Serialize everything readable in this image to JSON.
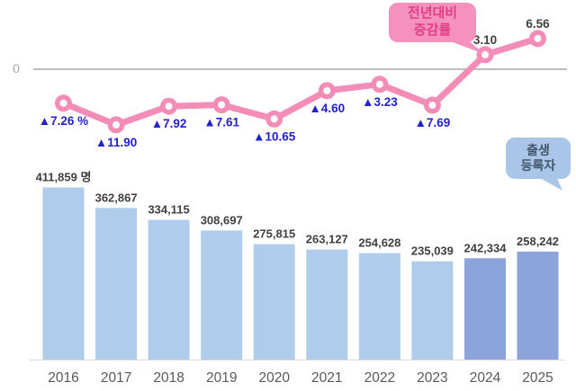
{
  "colors": {
    "bar_light": "#AFCDEA",
    "bar_dark": "#8DA4DA",
    "line_pink": "#F48CB8",
    "marker_hole": "#FFFFFF",
    "value_label_blue": "#2222CC",
    "value_label_dark": "#404040",
    "bar_label": "#404040",
    "year_label": "#595959",
    "zero_line": "#A6A6A6",
    "baseline": "#D9D9D9",
    "bubble_pink_fill": "#F591BD",
    "bubble_pink_text": "#E23D87",
    "bubble_blue_fill": "#A9C6E8",
    "bubble_blue_text": "#44546A"
  },
  "axis": {
    "zero_label": "0"
  },
  "callouts": {
    "line_series": {
      "line1": "전년대비",
      "line2": "증감률"
    },
    "bar_series": {
      "line1": "출생",
      "line2": "등록자"
    }
  },
  "chart_data": [
    {
      "type": "line",
      "name": "전년대비 증감률",
      "unit": "%",
      "categories": [
        "2016",
        "2017",
        "2018",
        "2019",
        "2020",
        "2021",
        "2022",
        "2023",
        "2024",
        "2025"
      ],
      "values": [
        -7.26,
        -11.9,
        -7.92,
        -7.61,
        -10.65,
        -4.6,
        -3.23,
        -7.69,
        3.1,
        6.56
      ],
      "labels": [
        "▲7.26 %",
        "▲11.90",
        "▲7.92",
        "▲7.61",
        "▲10.65",
        "▲4.60",
        "▲3.23",
        "▲7.69",
        "3.10",
        "6.56"
      ],
      "zero_gridline": true,
      "legend_position": "callout-bubble"
    },
    {
      "type": "bar",
      "name": "출생 등록자",
      "unit": "명",
      "categories": [
        "2016",
        "2017",
        "2018",
        "2019",
        "2020",
        "2021",
        "2022",
        "2023",
        "2024",
        "2025"
      ],
      "values": [
        411859,
        362867,
        334115,
        308697,
        275815,
        263127,
        254628,
        235039,
        242334,
        258242
      ],
      "labels": [
        "411,859 명",
        "362,867",
        "334,115",
        "308,697",
        "275,815",
        "263,127",
        "254,628",
        "235,039",
        "242,334",
        "258,242"
      ],
      "highlighted_categories": [
        "2024",
        "2025"
      ],
      "legend_position": "callout-bubble"
    }
  ]
}
